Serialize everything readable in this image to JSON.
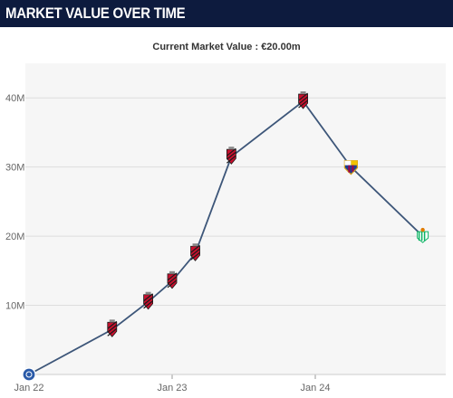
{
  "header": {
    "title": "MARKET VALUE OVER TIME"
  },
  "subtitle": "Current Market Value : €20.00m",
  "colors": {
    "header_bg": "#0d1b3e",
    "plot_bg": "#f6f6f6",
    "line": "#3d5679",
    "grid": "#dddddd",
    "club_red": "#c8102e",
    "club_black": "#1a1a1a",
    "cruzeiro_blue": "#2a5aa8",
    "barcelona_blue": "#1c3f94",
    "barcelona_red": "#a50044",
    "betis_green": "#0bb363"
  },
  "chart_data": {
    "type": "line",
    "title": "",
    "xlabel": "",
    "ylabel": "",
    "x_ticks": [
      "Jan 22",
      "Jan 23",
      "Jan 24"
    ],
    "y_ticks": [
      "10M",
      "20M",
      "30M",
      "40M"
    ],
    "ylim": [
      0,
      45
    ],
    "grid": true,
    "series": [
      {
        "x": [
          "2022-01",
          "2022-08",
          "2022-11",
          "2023-01",
          "2023-03",
          "2023-06",
          "2023-12",
          "2024-04",
          "2024-10"
        ],
        "values": [
          0,
          6.5,
          10.5,
          13.5,
          17.5,
          31.5,
          39.5,
          30,
          20
        ],
        "club_icons": [
          "cruzeiro-crest",
          "athletico-crest",
          "athletico-crest",
          "athletico-crest",
          "athletico-crest",
          "athletico-crest",
          "athletico-crest",
          "barcelona-crest",
          "betis-crest"
        ]
      }
    ]
  }
}
